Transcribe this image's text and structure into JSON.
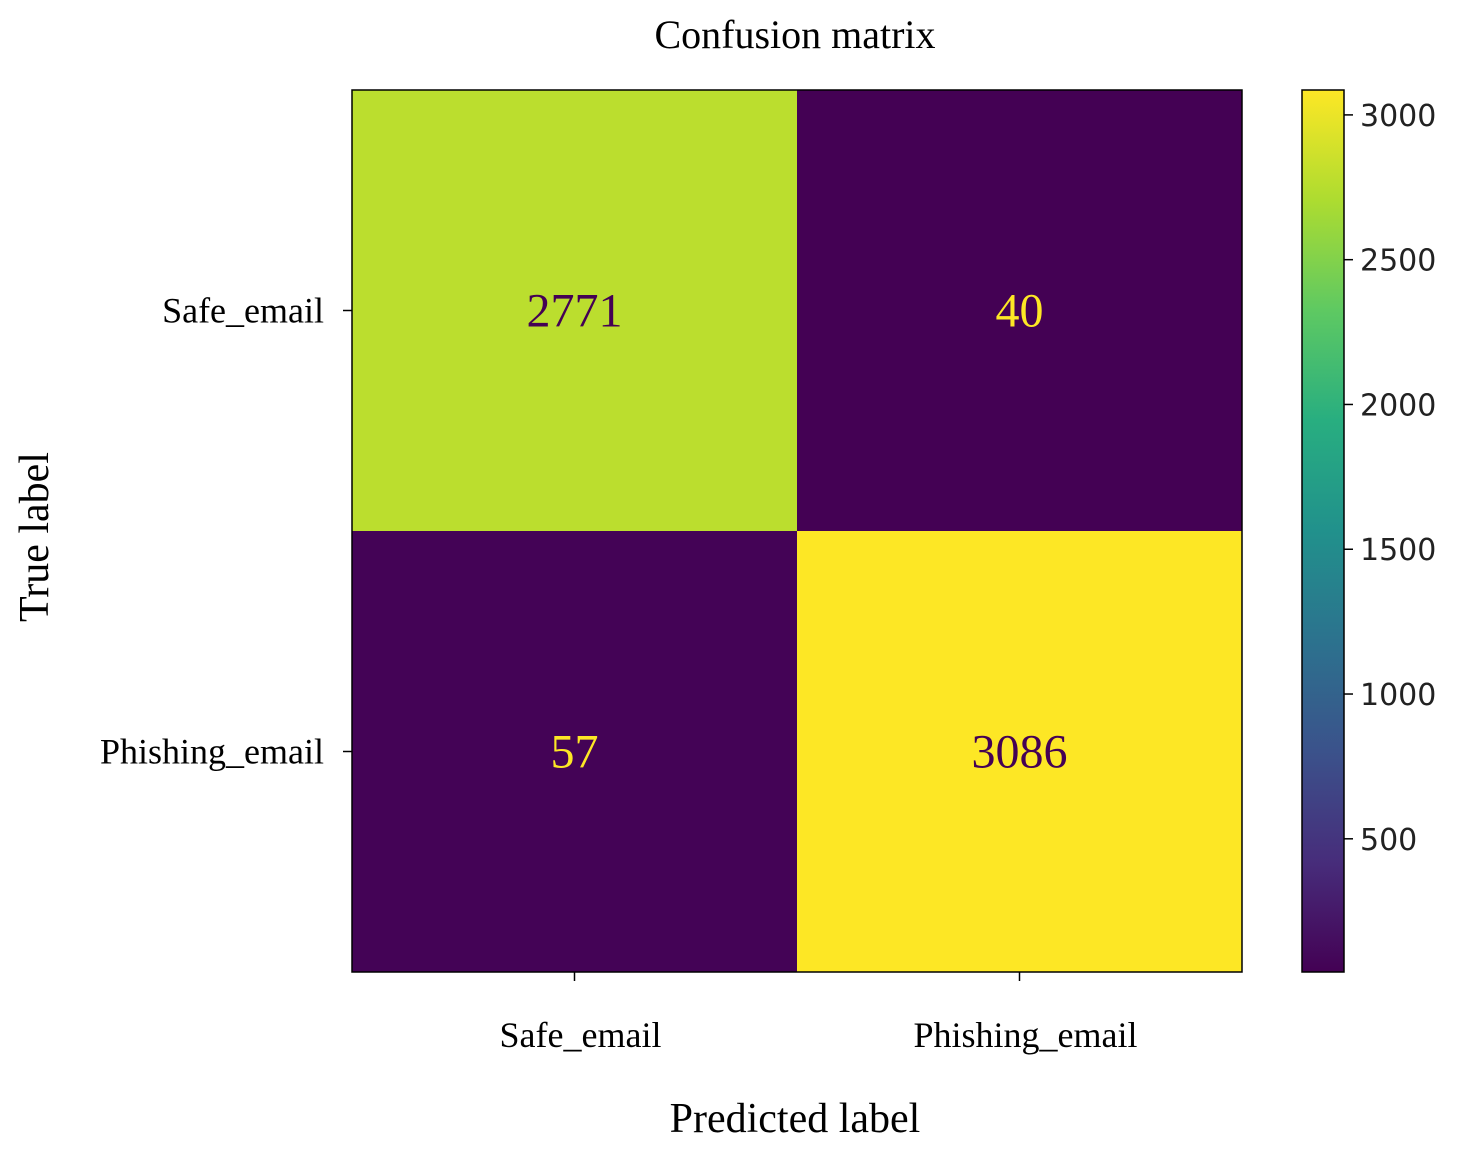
{
  "chart_data": {
    "type": "heatmap",
    "title": "Confusion matrix",
    "xlabel": "Predicted label",
    "ylabel": "True label",
    "x_categories": [
      "Safe_email",
      "Phishing_email"
    ],
    "y_categories": [
      "Safe_email",
      "Phishing_email"
    ],
    "values": [
      [
        2771,
        40
      ],
      [
        57,
        3086
      ]
    ],
    "colormap": "viridis",
    "colorbar": {
      "min": 40,
      "max": 3086,
      "ticks": [
        500,
        1000,
        1500,
        2000,
        2500,
        3000
      ],
      "tick_labels": [
        "500",
        "1000",
        "1500",
        "2000",
        "2500",
        "3000"
      ]
    },
    "text_colors": {
      "on_dark": "#fde725",
      "on_light": "#440154"
    }
  }
}
